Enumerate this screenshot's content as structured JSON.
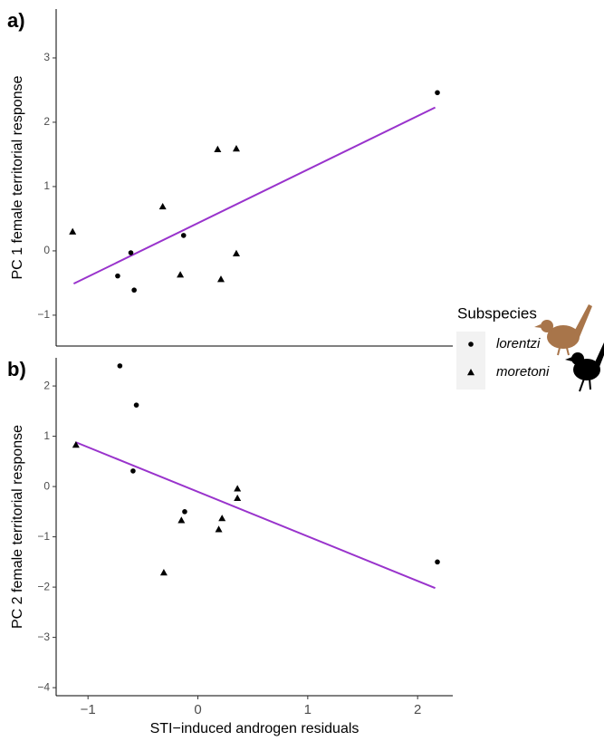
{
  "chart_data": [
    {
      "type": "scatter",
      "panel_label": "a)",
      "y_label": "PC 1 female territorial response",
      "xlim": [
        -1.29,
        2.32
      ],
      "ylim": [
        -1.48,
        3.76
      ],
      "yticks": [
        {
          "value": -1,
          "label": "−1"
        },
        0,
        1,
        2,
        3
      ],
      "legend_title": "Subspecies",
      "series": [
        {
          "name": "lorentzi",
          "marker": "circle",
          "color": "#000000",
          "x": [
            2.18,
            -0.61,
            -0.73,
            -0.58,
            -0.13
          ],
          "values": [
            2.46,
            -0.03,
            -0.39,
            -0.61,
            0.24
          ]
        },
        {
          "name": "moretoni",
          "marker": "triangle",
          "color": "#000000",
          "x": [
            -1.14,
            -0.32,
            -0.16,
            0.18,
            0.35,
            0.21,
            0.35
          ],
          "values": [
            0.3,
            0.69,
            -0.37,
            1.58,
            1.59,
            -0.44,
            -0.04
          ]
        }
      ],
      "fit": {
        "color": "#9933cc",
        "x": [
          -1.13,
          2.16
        ],
        "values": [
          -0.51,
          2.23
        ]
      }
    },
    {
      "type": "scatter",
      "panel_label": "b)",
      "y_label": "PC 2 female territorial response",
      "x_label": "STI−induced androgen residuals",
      "xlim": [
        -1.29,
        2.32
      ],
      "ylim": [
        -4.16,
        2.56
      ],
      "xticks": [
        {
          "value": -1,
          "label": "−1"
        },
        0,
        1,
        2
      ],
      "yticks": [
        {
          "value": -4,
          "label": "−4"
        },
        {
          "value": -3,
          "label": "−3"
        },
        {
          "value": -2,
          "label": "−2"
        },
        {
          "value": -1,
          "label": "−1"
        },
        0,
        1,
        2
      ],
      "series": [
        {
          "marker": "circle",
          "color": "#000000",
          "x": [
            -0.71,
            -0.56,
            -0.59,
            -0.12,
            2.18
          ],
          "values": [
            2.4,
            1.62,
            0.31,
            -0.5,
            -1.5
          ]
        },
        {
          "marker": "triangle",
          "color": "#000000",
          "x": [
            -1.11,
            -0.15,
            0.22,
            0.19,
            0.36,
            0.36,
            -0.31
          ],
          "values": [
            0.83,
            -0.67,
            -0.63,
            -0.85,
            -0.04,
            -0.23,
            -1.71
          ]
        }
      ],
      "fit": {
        "color": "#9933cc",
        "x": [
          -1.11,
          2.16
        ],
        "values": [
          0.88,
          -2.02
        ]
      }
    }
  ]
}
